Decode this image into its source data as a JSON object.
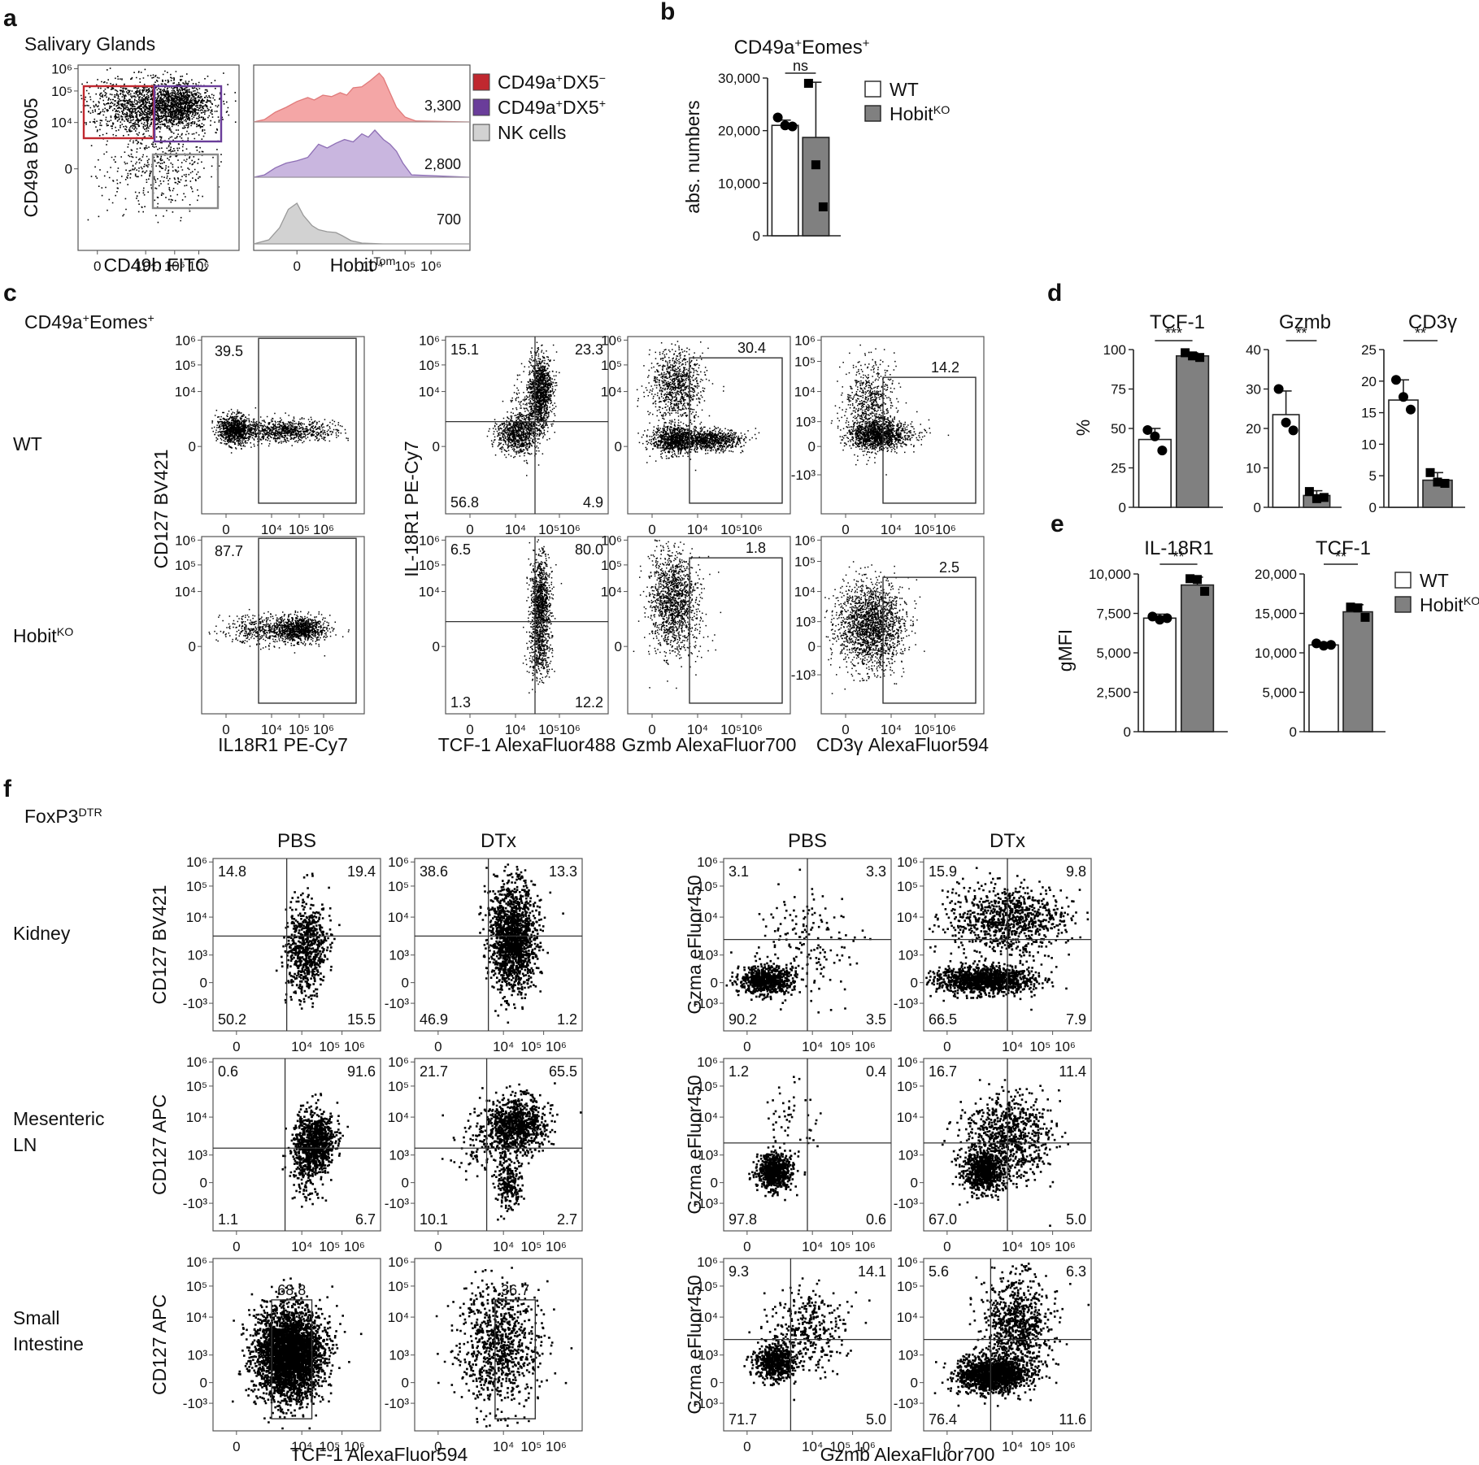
{
  "colors": {
    "gate_dx5neg": "#c0282f",
    "gate_dx5pos": "#6a3d9a",
    "gate_nk": "#8a8a8a",
    "hist_red": "#f4a6a6",
    "hist_purple": "#c9b6df",
    "hist_grey": "#d2d2d2",
    "bar_wt": "#ffffff",
    "bar_ko": "#808080"
  },
  "panel_a": {
    "letter": "a",
    "title": "Salivary Glands",
    "dot": {
      "xlabel": "CD49b FITC",
      "ylabel": "CD49a BV605",
      "x_ticks": [
        "0",
        "10⁴",
        "10⁵",
        "10⁶"
      ],
      "y_ticks": [
        "10⁶",
        "10⁵",
        "10⁴",
        "0"
      ]
    },
    "hist": {
      "xlabel_main": "Hobit",
      "xlabel_sup": "Tom",
      "x_ticks": [
        "0",
        "10⁴",
        "10⁵",
        "10⁶"
      ],
      "values": [
        "3,300",
        "2,800",
        "700"
      ]
    },
    "legend": [
      {
        "main": "CD49a",
        "sup1": "+",
        "mid": "DX5",
        "sup2": "−",
        "color": "#c0282f"
      },
      {
        "main": "CD49a",
        "sup1": "+",
        "mid": "DX5",
        "sup2": "+",
        "color": "#6a3d9a"
      },
      {
        "main": "NK cells",
        "sup1": "",
        "mid": "",
        "sup2": "",
        "color": "#d2d2d2"
      }
    ]
  },
  "panel_b": {
    "letter": "b",
    "title_main": "CD49a",
    "title_sup1": "+",
    "title_mid": "Eomes",
    "title_sup2": "+",
    "significance": "ns",
    "legend": [
      {
        "main": "WT",
        "sup": ""
      },
      {
        "main": "Hobit",
        "sup": "KO"
      }
    ]
  },
  "panel_c": {
    "letter": "c",
    "title_main": "CD49a",
    "title_sup1": "+",
    "title_mid": "Eomes",
    "title_sup2": "+",
    "rows": [
      {
        "main": "WT",
        "sup": ""
      },
      {
        "main": "Hobit",
        "sup": "KO"
      }
    ],
    "plots": [
      {
        "xlabel": "IL18R1 PE-Cy7",
        "ylabel": "CD127 BV421",
        "x_ticks": [
          "0",
          "10⁴",
          "10⁵",
          "10⁶"
        ],
        "y_ticks": [
          "10⁶",
          "10⁵",
          "10⁴",
          "0"
        ],
        "wt": [
          "39.5"
        ],
        "ko": [
          "87.7"
        ]
      },
      {
        "xlabel": "TCF-1 AlexaFluor488",
        "ylabel": "IL-18R1 PE-Cy7",
        "x_ticks": [
          "0",
          "10⁴",
          "10⁵10⁶"
        ],
        "y_ticks": [
          "10⁶",
          "10⁵",
          "10⁴",
          "0"
        ],
        "wt": [
          "15.1",
          "23.3",
          "56.8",
          "4.9"
        ],
        "ko": [
          "6.5",
          "80.0",
          "1.3",
          "12.2"
        ]
      },
      {
        "xlabel": "Gzmb AlexaFluor700",
        "ylabel": "",
        "x_ticks": [
          "0",
          "10⁴",
          "10⁵10⁶"
        ],
        "y_ticks": [
          "10⁶",
          "10⁵",
          "10⁴",
          "0"
        ],
        "wt": [
          "30.4"
        ],
        "ko": [
          "1.8"
        ]
      },
      {
        "xlabel": "CD3γ AlexaFluor594",
        "ylabel": "",
        "x_ticks": [
          "0",
          "10⁴",
          "10⁵10⁶"
        ],
        "y_ticks": [
          "10⁶",
          "10⁵",
          "10⁴",
          "10³",
          "0",
          "-10³"
        ],
        "wt": [
          "14.2"
        ],
        "ko": [
          "2.5"
        ]
      }
    ]
  },
  "panel_d": {
    "letter": "d"
  },
  "panel_e": {
    "letter": "e",
    "legend": [
      {
        "main": "WT",
        "sup": ""
      },
      {
        "main": "Hobit",
        "sup": "KO"
      }
    ]
  },
  "panel_f": {
    "letter": "f",
    "title_main": "FoxP3",
    "title_sup": "DTR",
    "col_headers": [
      "PBS",
      "DTx",
      "PBS",
      "DTx"
    ],
    "row_labels": [
      [
        "Kidney"
      ],
      [
        "Mesenteric",
        "LN"
      ],
      [
        "Small",
        "Intestine"
      ]
    ],
    "left_ylabels": [
      "CD127 BV421",
      "CD127 APC",
      "CD127 APC"
    ],
    "right_ylabel": "Gzma eFluor450",
    "left_xlabel": "TCF-1 AlexaFluor594",
    "right_xlabel": "Gzmb AlexaFluor700",
    "x_ticks": [
      "0",
      "10⁴",
      "10⁵ 10⁶"
    ],
    "y_ticks_left": [
      "10⁶",
      "10⁵",
      "10⁴",
      "10³",
      "0",
      "-10³"
    ],
    "y_ticks_right": [
      "10⁶",
      "10⁵",
      "10⁴",
      "10³",
      "0",
      "-10³"
    ],
    "left": [
      [
        [
          "14.8",
          "19.4",
          "50.2",
          "15.5"
        ],
        [
          "38.6",
          "13.3",
          "46.9",
          "1.2"
        ]
      ],
      [
        [
          "0.6",
          "91.6",
          "1.1",
          "6.7"
        ],
        [
          "21.7",
          "65.5",
          "10.1",
          "2.7"
        ]
      ],
      [
        [
          "68.8"
        ],
        [
          "36.7"
        ]
      ]
    ],
    "right": [
      [
        [
          "3.1",
          "3.3",
          "90.2",
          "3.5"
        ],
        [
          "15.9",
          "9.8",
          "66.5",
          "7.9"
        ]
      ],
      [
        [
          "1.2",
          "0.4",
          "97.8",
          "0.6"
        ],
        [
          "16.7",
          "11.4",
          "67.0",
          "5.0"
        ]
      ],
      [
        [
          "9.3",
          "14.1",
          "71.7",
          "5.0"
        ],
        [
          "5.6",
          "6.3",
          "76.4",
          "11.6"
        ]
      ]
    ]
  },
  "chart_data": [
    {
      "type": "bar",
      "title": "CD49a⁺Eomes⁺",
      "ylabel": "abs. numbers",
      "categories": [
        "WT",
        "HobitKO"
      ],
      "values": [
        21000,
        18700
      ],
      "errors": [
        1000,
        10500
      ],
      "points": [
        [
          22500,
          21000,
          20800
        ],
        [
          29000,
          13500,
          5500
        ]
      ],
      "ylim": [
        0,
        30000
      ],
      "yticks": [
        "0",
        "10,000",
        "20,000",
        "30,000"
      ],
      "annotation": "ns"
    },
    {
      "type": "bar",
      "title": "TCF-1",
      "ylabel": "%",
      "categories": [
        "WT",
        "HobitKO"
      ],
      "values": [
        43,
        96
      ],
      "errors": [
        7,
        2
      ],
      "points": [
        [
          49,
          45,
          36
        ],
        [
          98,
          96,
          95
        ]
      ],
      "ylim": [
        0,
        100
      ],
      "yticks": [
        "0",
        "25",
        "50",
        "75",
        "100"
      ],
      "annotation": "***"
    },
    {
      "type": "bar",
      "title": "Gzmb",
      "ylabel": "",
      "categories": [
        "WT",
        "HobitKO"
      ],
      "values": [
        23.5,
        3
      ],
      "errors": [
        6,
        1.2
      ],
      "points": [
        [
          30,
          21.5,
          19.5
        ],
        [
          4,
          2.2,
          2.5
        ]
      ],
      "ylim": [
        0,
        40
      ],
      "yticks": [
        "0",
        "10",
        "20",
        "30",
        "40"
      ],
      "annotation": "**"
    },
    {
      "type": "bar",
      "title": "CD3γ",
      "ylabel": "",
      "categories": [
        "WT",
        "HobitKO"
      ],
      "values": [
        17,
        4.3
      ],
      "errors": [
        3.2,
        1.2
      ],
      "points": [
        [
          20.2,
          17.5,
          15.5
        ],
        [
          5.5,
          4,
          3.8
        ]
      ],
      "ylim": [
        0,
        25
      ],
      "yticks": [
        "0",
        "5",
        "10",
        "15",
        "20",
        "25"
      ],
      "annotation": "**"
    },
    {
      "type": "bar",
      "title": "IL-18R1",
      "ylabel": "gMFI",
      "categories": [
        "WT",
        "HobitKO"
      ],
      "values": [
        7200,
        9300
      ],
      "errors": [
        250,
        500
      ],
      "points": [
        [
          7300,
          7100,
          7200
        ],
        [
          9700,
          9650,
          8900
        ]
      ],
      "ylim": [
        0,
        10000
      ],
      "yticks": [
        "0",
        "2,500",
        "5,000",
        "7,500",
        "10,000"
      ],
      "annotation": "**"
    },
    {
      "type": "bar",
      "title": "TCF-1",
      "ylabel": "",
      "categories": [
        "WT",
        "HobitKO"
      ],
      "values": [
        11000,
        15200
      ],
      "errors": [
        300,
        900
      ],
      "points": [
        [
          11200,
          10900,
          11000
        ],
        [
          15800,
          15700,
          14500
        ]
      ],
      "ylim": [
        0,
        20000
      ],
      "yticks": [
        "0",
        "5,000",
        "10,000",
        "15,000",
        "20,000"
      ],
      "annotation": "**"
    }
  ]
}
